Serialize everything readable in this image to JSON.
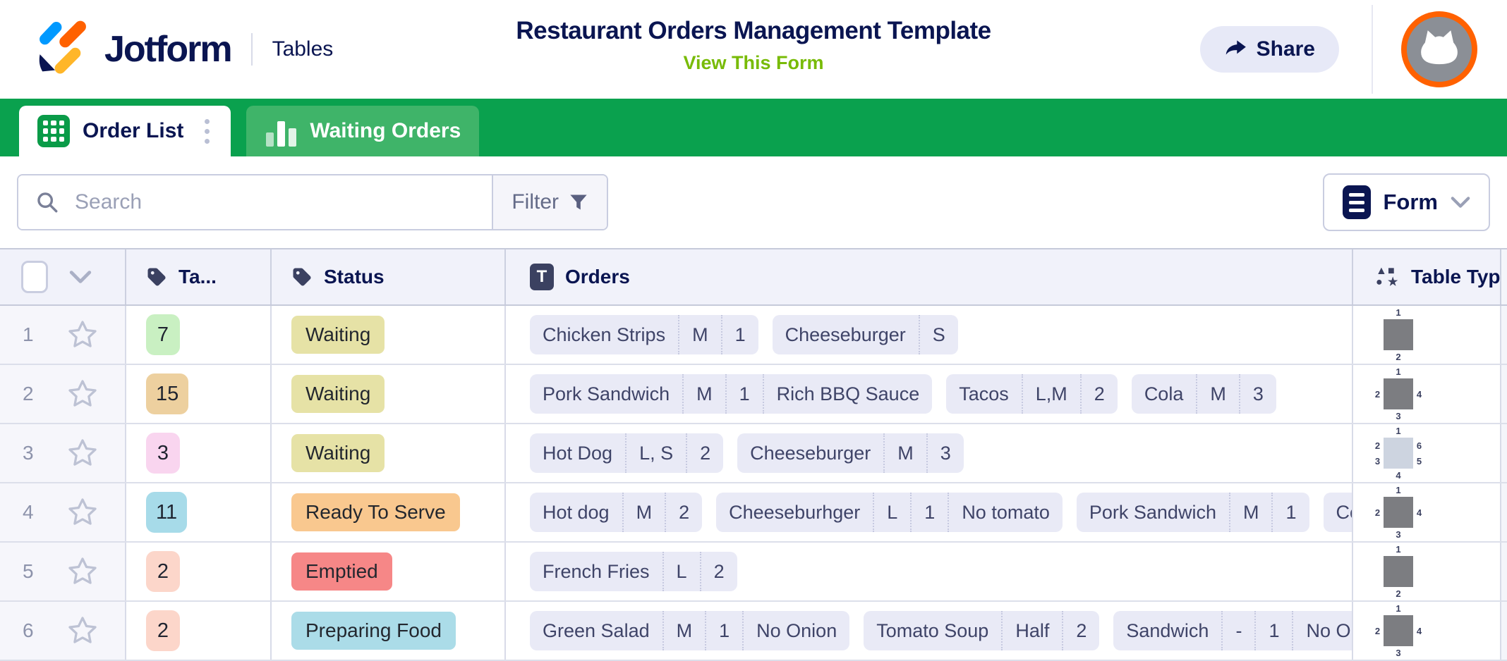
{
  "header": {
    "brand": "Jotform",
    "product": "Tables",
    "title": "Restaurant Orders Management Template",
    "view_form_label": "View This Form",
    "share_label": "Share"
  },
  "tabs": [
    {
      "label": "Order List",
      "icon": "grid-icon",
      "active": true
    },
    {
      "label": "Waiting Orders",
      "icon": "bar-chart-icon",
      "active": false
    }
  ],
  "toolbar": {
    "search_placeholder": "Search",
    "filter_label": "Filter",
    "view_label": "Form"
  },
  "table": {
    "columns": [
      {
        "id": "row-controls",
        "label": ""
      },
      {
        "id": "table-no",
        "label": "Ta...",
        "icon": "tag-icon"
      },
      {
        "id": "status",
        "label": "Status",
        "icon": "tag-icon"
      },
      {
        "id": "orders",
        "label": "Orders",
        "icon": "text-icon"
      },
      {
        "id": "table-type",
        "label": "Table Type",
        "icon": "shapes-icon"
      }
    ],
    "rows": [
      {
        "index": "1",
        "table_no": {
          "value": "7",
          "color": "#c9f0c2"
        },
        "status": {
          "label": "Waiting",
          "color": "#e6e2a6"
        },
        "orders": [
          {
            "parts": [
              "Chicken Strips",
              "M",
              "1"
            ]
          },
          {
            "parts": [
              "Cheeseburger",
              "S"
            ]
          }
        ],
        "table_type": {
          "top": "1",
          "left": [],
          "right": [],
          "bottom": "2",
          "variant": "solid"
        }
      },
      {
        "index": "2",
        "table_no": {
          "value": "15",
          "color": "#edd09f"
        },
        "status": {
          "label": "Waiting",
          "color": "#e6e2a6"
        },
        "orders": [
          {
            "parts": [
              "Pork Sandwich",
              "M",
              "1",
              "Rich BBQ Sauce"
            ]
          },
          {
            "parts": [
              "Tacos",
              "L,M",
              "2"
            ]
          },
          {
            "parts": [
              "Cola",
              "M",
              "3"
            ]
          }
        ],
        "table_type": {
          "top": "1",
          "left": [
            "2"
          ],
          "right": [
            "4"
          ],
          "bottom": "3",
          "variant": "solid"
        }
      },
      {
        "index": "3",
        "table_no": {
          "value": "3",
          "color": "#f9d5ef"
        },
        "status": {
          "label": "Waiting",
          "color": "#e6e2a6"
        },
        "orders": [
          {
            "parts": [
              "Hot Dog",
              "L, S",
              "2"
            ]
          },
          {
            "parts": [
              "Cheeseburger",
              "M",
              "3"
            ]
          }
        ],
        "table_type": {
          "top": "1",
          "left": [
            "2",
            "3"
          ],
          "right": [
            "6",
            "5"
          ],
          "bottom": "4",
          "variant": "light"
        }
      },
      {
        "index": "4",
        "table_no": {
          "value": "11",
          "color": "#a7dbe9"
        },
        "status": {
          "label": "Ready To Serve",
          "color": "#f9c88f"
        },
        "orders": [
          {
            "parts": [
              "Hot dog",
              "M",
              "2"
            ]
          },
          {
            "parts": [
              "Cheeseburhger",
              "L",
              "1",
              "No tomato"
            ]
          },
          {
            "parts": [
              "Pork Sandwich",
              "M",
              "1"
            ]
          },
          {
            "parts": [
              "Cola"
            ]
          }
        ],
        "table_type": {
          "top": "1",
          "left": [
            "2"
          ],
          "right": [
            "4"
          ],
          "bottom": "3",
          "variant": "solid"
        }
      },
      {
        "index": "5",
        "table_no": {
          "value": "2",
          "color": "#fcd6ca"
        },
        "status": {
          "label": "Emptied",
          "color": "#f68787"
        },
        "orders": [
          {
            "parts": [
              "French Fries",
              "L",
              "2"
            ]
          }
        ],
        "table_type": {
          "top": "1",
          "left": [],
          "right": [],
          "bottom": "2",
          "variant": "solid"
        }
      },
      {
        "index": "6",
        "table_no": {
          "value": "2",
          "color": "#fcd6ca"
        },
        "status": {
          "label": "Preparing Food",
          "color": "#abdce8"
        },
        "orders": [
          {
            "parts": [
              "Green Salad",
              "M",
              "1",
              "No Onion"
            ]
          },
          {
            "parts": [
              "Tomato Soup",
              "Half",
              "2"
            ]
          },
          {
            "parts": [
              "Sandwich",
              "-",
              "1",
              "No Onion"
            ]
          }
        ],
        "table_type": {
          "top": "1",
          "left": [
            "2"
          ],
          "right": [
            "4"
          ],
          "bottom": "3",
          "variant": "solid"
        }
      }
    ]
  },
  "colors": {
    "brand_navy": "#0a1551",
    "tabbar_green": "#0aa14e",
    "inactive_tab_green": "#3fb469",
    "link_green": "#78bb07",
    "avatar_ring_orange": "#ff6100",
    "order_chip_bg": "#e9eaf6",
    "header_row_bg": "#f1f2fa"
  }
}
